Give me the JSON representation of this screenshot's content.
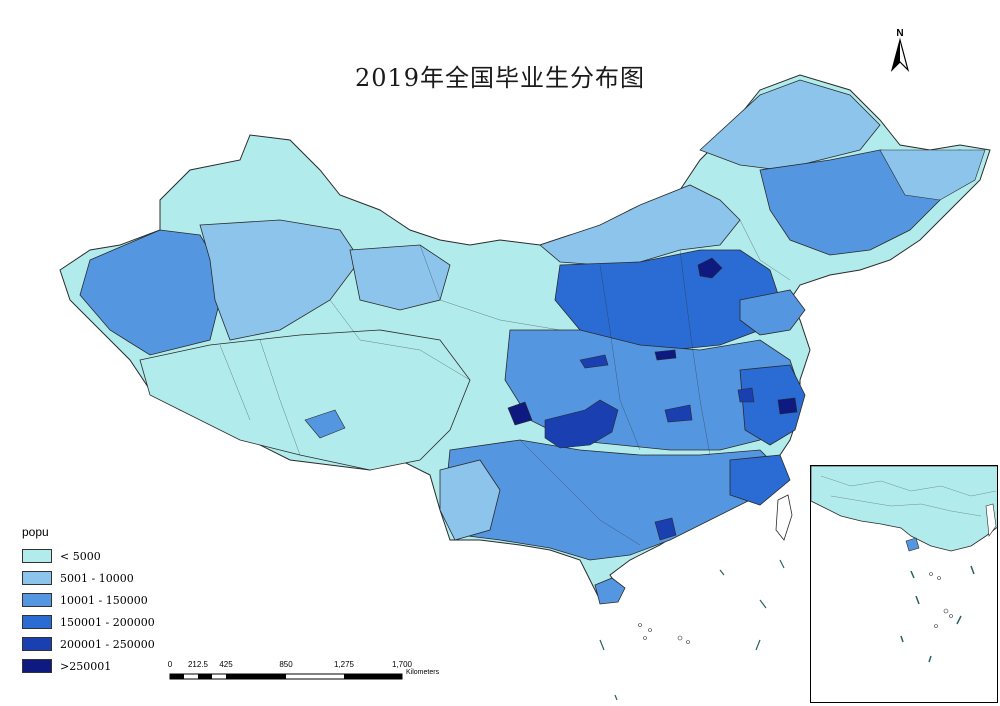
{
  "title": "2019年全国毕业生分布图",
  "north_arrow": {
    "label": "N"
  },
  "legend": {
    "title": "popu",
    "items": [
      {
        "label": "< 5000",
        "color": "#b2ebeb"
      },
      {
        "label": "5001 - 10000",
        "color": "#8cc4ec"
      },
      {
        "label": "10001 - 150000",
        "color": "#5596e0"
      },
      {
        "label": "150001 - 200000",
        "color": "#2a6cd4"
      },
      {
        "label": "200001 - 250000",
        "color": "#1a3fb0"
      },
      {
        "label": ">250001",
        "color": "#0f1a80"
      }
    ]
  },
  "scale_bar": {
    "ticks": [
      "0",
      "212.5",
      "425",
      "850",
      "1,275",
      "1,700"
    ],
    "unit": "Kilometers"
  },
  "colors": {
    "outline": "#2a2a2a",
    "background": "#ffffff"
  }
}
